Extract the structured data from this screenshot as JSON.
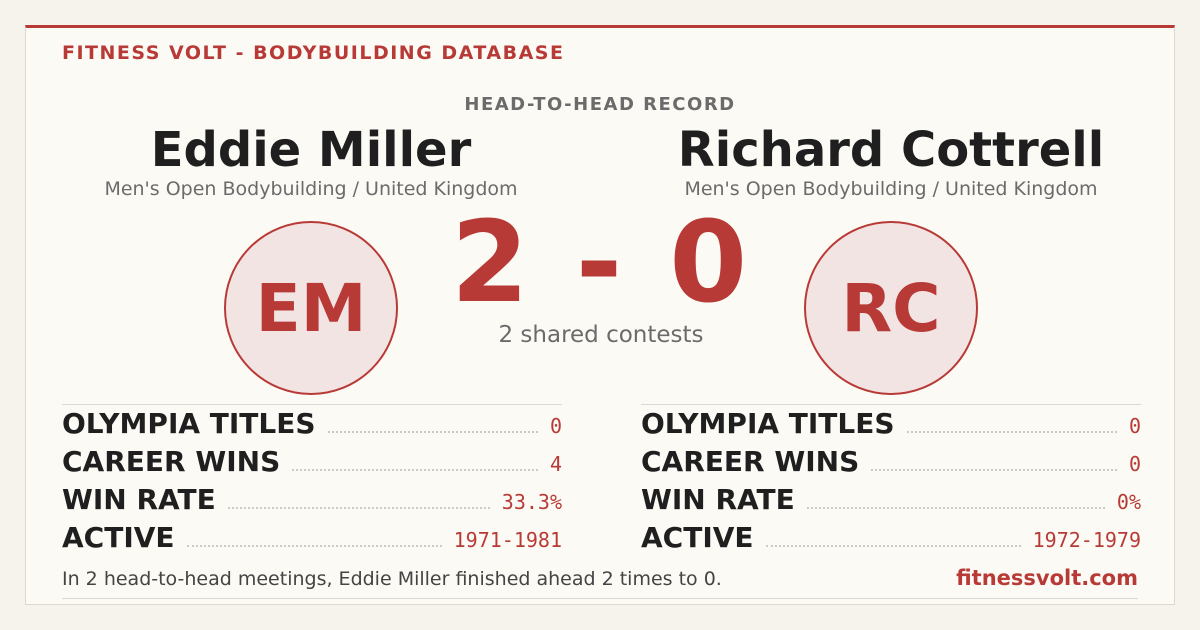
{
  "header": {
    "brand": "FITNESS VOLT - BODYBUILDING DATABASE",
    "heading": "HEAD-TO-HEAD RECORD"
  },
  "left": {
    "name": "Eddie Miller",
    "subtitle": "Men's Open Bodybuilding / United Kingdom",
    "initials": "EM",
    "stats": [
      {
        "label": "OLYMPIA TITLES",
        "value": "0"
      },
      {
        "label": "CAREER WINS",
        "value": "4"
      },
      {
        "label": "WIN RATE",
        "value": "33.3%"
      },
      {
        "label": "ACTIVE",
        "value": "1971-1981"
      }
    ]
  },
  "right": {
    "name": "Richard Cottrell",
    "subtitle": "Men's Open Bodybuilding / United Kingdom",
    "initials": "RC",
    "stats": [
      {
        "label": "OLYMPIA TITLES",
        "value": "0"
      },
      {
        "label": "CAREER WINS",
        "value": "0"
      },
      {
        "label": "WIN RATE",
        "value": "0%"
      },
      {
        "label": "ACTIVE",
        "value": "1972-1979"
      }
    ]
  },
  "score": {
    "text": "2 - 0",
    "shared": "2 shared contests"
  },
  "footer": {
    "summary": "In 2 head-to-head meetings, Eddie Miller finished ahead 2 times to 0.",
    "site": "fitnessvolt.com"
  }
}
